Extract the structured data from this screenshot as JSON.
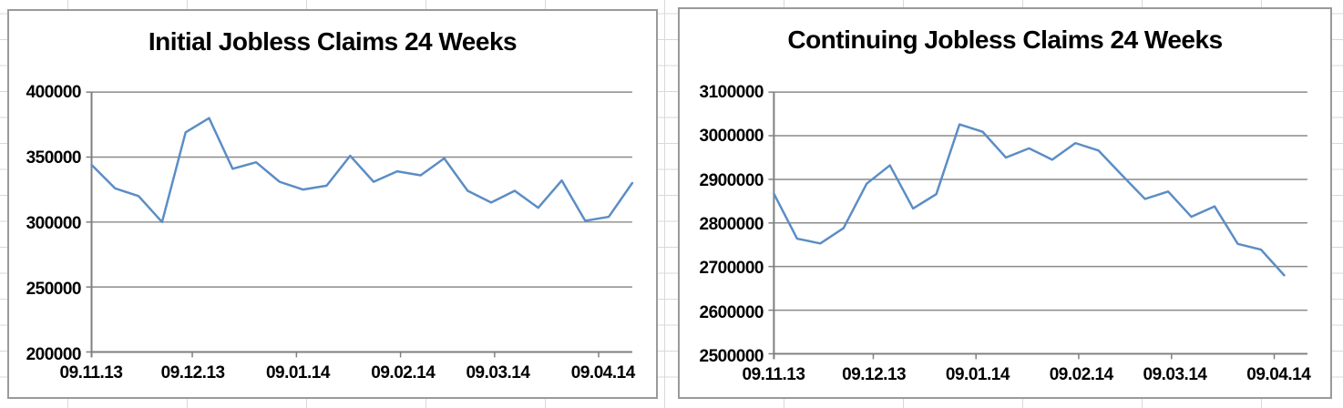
{
  "page": {
    "background_color": "#ffffff",
    "sheet_gridline_color": "#d9d9d9",
    "chart_border_color": "#9a9a9a",
    "chart_background_color": "#ffffff"
  },
  "chart_data": [
    {
      "type": "line",
      "title": "Initial Jobless Claims 24 Weeks",
      "xlabel": "",
      "ylabel": "",
      "legend": "none",
      "grid": true,
      "ylim": [
        200000,
        400000
      ],
      "y_step": 50000,
      "y_tick_labels": [
        "400000",
        "350000",
        "300000",
        "250000",
        "200000"
      ],
      "x_tick_labels": [
        "09.11.13",
        "09.12.13",
        "09.01.14",
        "09.02.14",
        "09.03.14",
        "09.04.14"
      ],
      "x_tick_day_offsets": [
        0,
        30,
        61,
        92,
        120,
        151
      ],
      "x_total_days": 161,
      "point_interval_days": 7,
      "values": [
        344000,
        326000,
        320000,
        300000,
        369000,
        380000,
        341000,
        346000,
        331000,
        325000,
        328000,
        351000,
        331000,
        339000,
        336000,
        349000,
        324000,
        315000,
        324000,
        311000,
        332000,
        301000,
        304000,
        330000
      ],
      "line_color": "#5b8dc5",
      "gridline_color": "#8a8a8a",
      "axis_color": "#7f7f7f"
    },
    {
      "type": "line",
      "title": "Continuing Jobless Claims 24 Weeks",
      "xlabel": "",
      "ylabel": "",
      "legend": "none",
      "grid": true,
      "ylim": [
        2500000,
        3100000
      ],
      "y_step": 100000,
      "y_tick_labels": [
        "3100000",
        "3000000",
        "2900000",
        "2800000",
        "2700000",
        "2600000",
        "2500000"
      ],
      "x_tick_labels": [
        "09.11.13",
        "09.12.13",
        "09.01.14",
        "09.02.14",
        "09.03.14",
        "09.04.14"
      ],
      "x_tick_day_offsets": [
        0,
        30,
        61,
        92,
        120,
        151
      ],
      "x_total_days": 161,
      "point_interval_days": 7,
      "values": [
        2867000,
        2764000,
        2753000,
        2788000,
        2890000,
        2932000,
        2833000,
        2866000,
        3026000,
        3009000,
        2950000,
        2971000,
        2945000,
        2983000,
        2966000,
        2910000,
        2855000,
        2872000,
        2814000,
        2838000,
        2752000,
        2739000,
        2680000
      ],
      "line_color": "#5b8dc5",
      "gridline_color": "#8a8a8a",
      "axis_color": "#7f7f7f"
    }
  ]
}
